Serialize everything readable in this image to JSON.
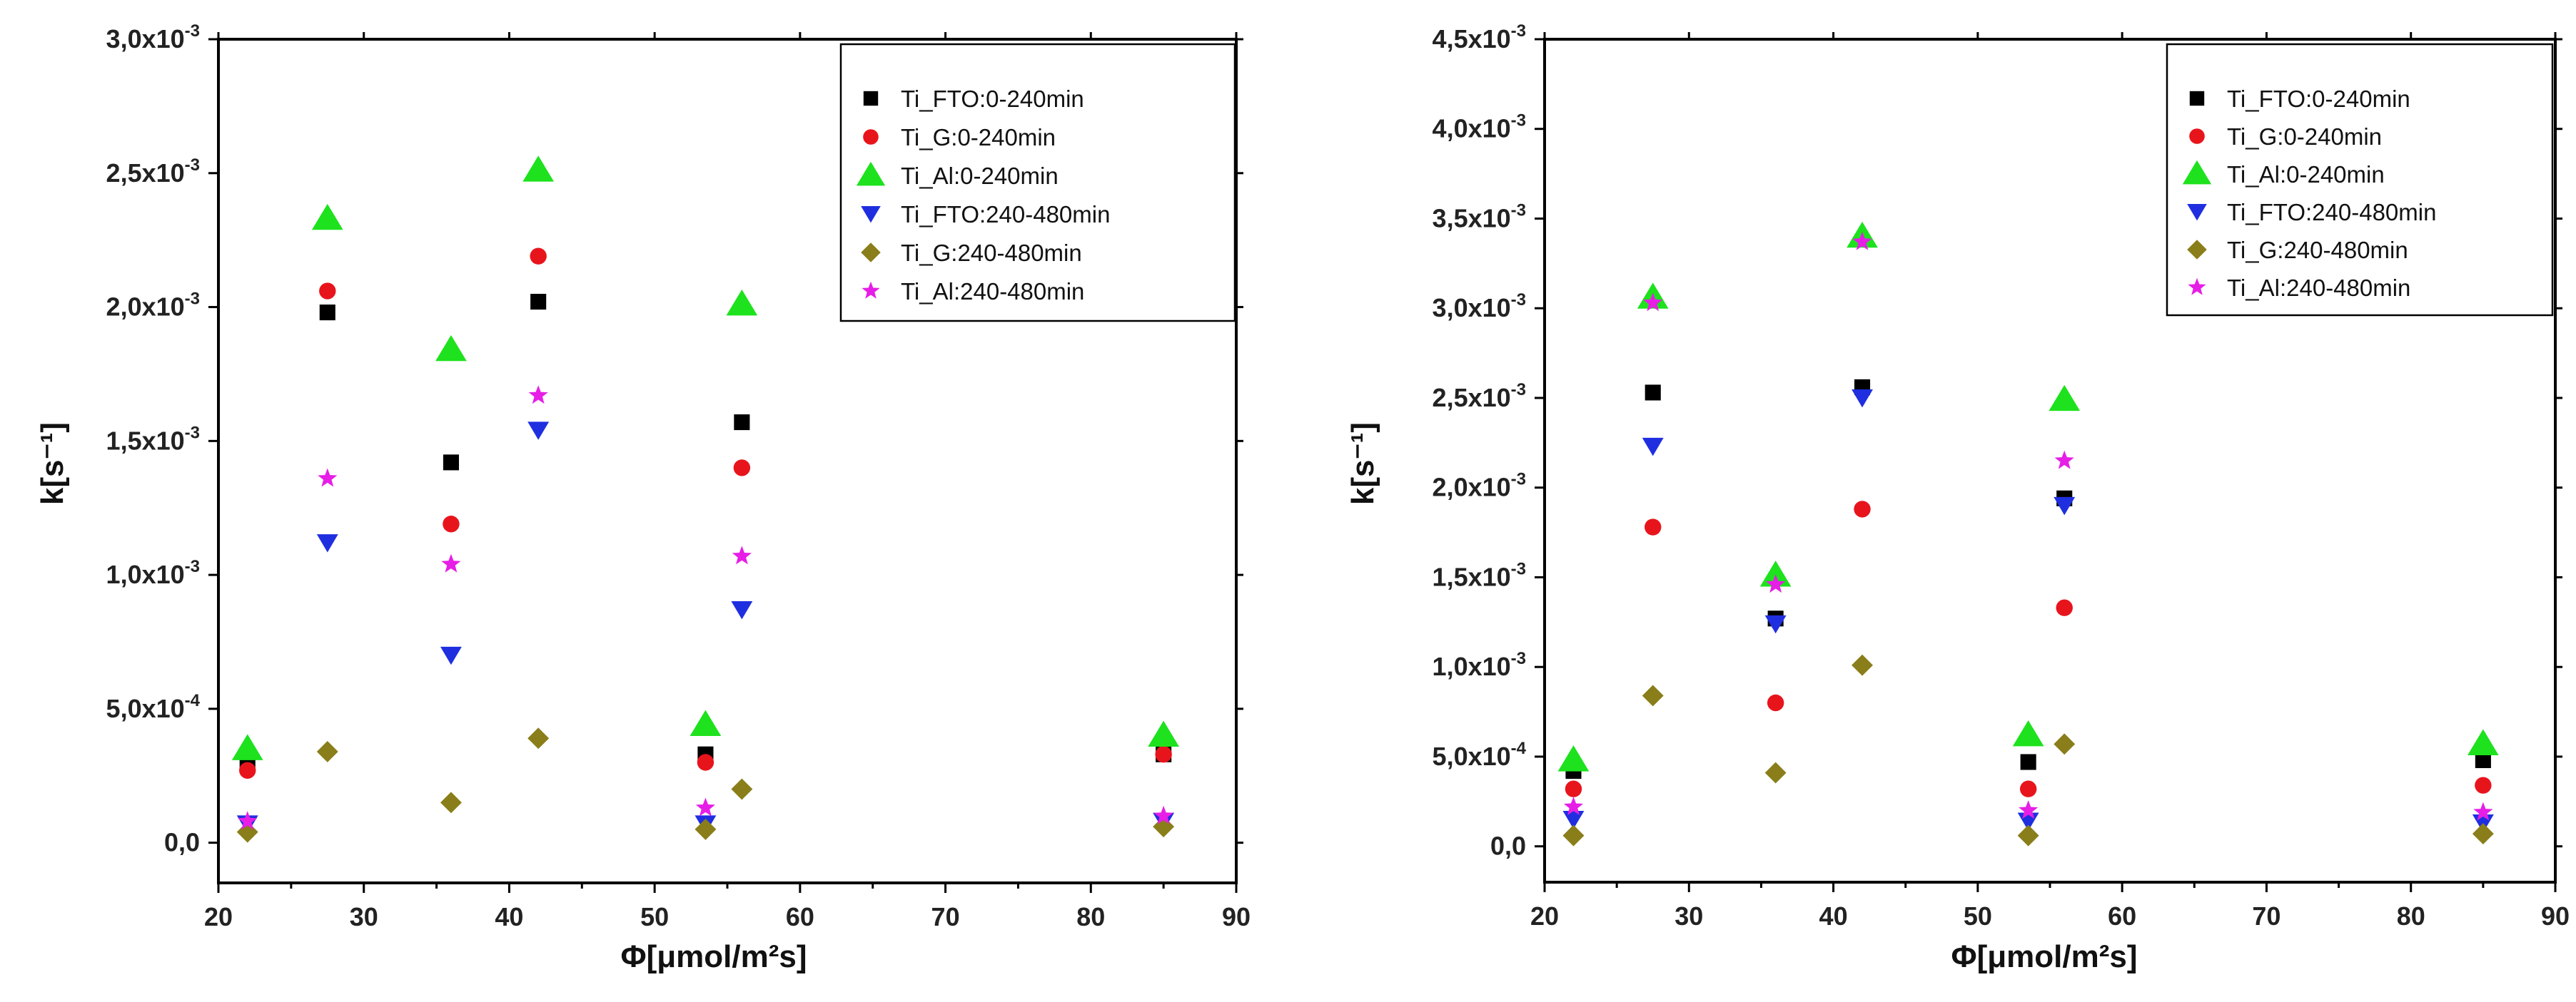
{
  "chart_data": [
    {
      "type": "scatter",
      "xlabel": "Φ[μmol/m²s]",
      "ylabel": "k[s⁻¹]",
      "xlim": [
        20,
        90
      ],
      "ylim": [
        -0.00015,
        0.003
      ],
      "x_ticks": [
        20,
        30,
        40,
        50,
        60,
        70,
        80,
        90
      ],
      "y_ticks": [
        {
          "value": 0,
          "label": "0,0",
          "exp": ""
        },
        {
          "value": 0.0005,
          "label": "5,0x10",
          "exp": "-4"
        },
        {
          "value": 0.001,
          "label": "1,0x10",
          "exp": "-3"
        },
        {
          "value": 0.0015,
          "label": "1,5x10",
          "exp": "-3"
        },
        {
          "value": 0.002,
          "label": "2,0x10",
          "exp": "-3"
        },
        {
          "value": 0.0025,
          "label": "2,5x10",
          "exp": "-3"
        },
        {
          "value": 0.003,
          "label": "3,0x10",
          "exp": "-3"
        }
      ],
      "legend_position": "top-right",
      "series": [
        {
          "name": "Ti_FTO:0-240min",
          "marker": "square",
          "color": "#000000",
          "x": [
            22,
            27.5,
            36,
            42,
            53.5,
            56,
            85
          ],
          "y": [
            0.0003,
            0.00198,
            0.00142,
            0.00202,
            0.00033,
            0.00157,
            0.00033
          ]
        },
        {
          "name": "Ti_G:0-240min",
          "marker": "circle",
          "color": "#e8141c",
          "x": [
            22,
            27.5,
            36,
            42,
            53.5,
            56,
            85
          ],
          "y": [
            0.00027,
            0.00206,
            0.00119,
            0.00219,
            0.0003,
            0.0014,
            0.00033
          ]
        },
        {
          "name": "Ti_Al:0-240min",
          "marker": "triangle-up",
          "color": "#1de21d",
          "x": [
            22,
            27.5,
            36,
            42,
            53.5,
            56,
            85
          ],
          "y": [
            0.00035,
            0.00233,
            0.00184,
            0.00251,
            0.00044,
            0.00201,
            0.0004
          ]
        },
        {
          "name": "Ti_FTO:240-480min",
          "marker": "triangle-down",
          "color": "#1f2fe0",
          "x": [
            22,
            27.5,
            36,
            42,
            53.5,
            56,
            85
          ],
          "y": [
            7e-05,
            0.00112,
            0.0007,
            0.00154,
            7e-05,
            0.00087,
            8e-05
          ]
        },
        {
          "name": "Ti_G:240-480min",
          "marker": "diamond",
          "color": "#8a7e1a",
          "x": [
            22,
            27.5,
            36,
            42,
            53.5,
            56,
            85
          ],
          "y": [
            4e-05,
            0.00034,
            0.00015,
            0.00039,
            5e-05,
            0.0002,
            6e-05
          ]
        },
        {
          "name": "Ti_Al:240-480min",
          "marker": "star",
          "color": "#e61ee6",
          "x": [
            22,
            27.5,
            36,
            42,
            53.5,
            56,
            85
          ],
          "y": [
            8e-05,
            0.00136,
            0.00104,
            0.00167,
            0.00013,
            0.00107,
            0.0001
          ]
        }
      ]
    },
    {
      "type": "scatter",
      "xlabel": "Φ[μmol/m²s]",
      "ylabel": "k[s⁻¹]",
      "xlim": [
        20,
        90
      ],
      "ylim": [
        -0.0002,
        0.0045
      ],
      "x_ticks": [
        20,
        30,
        40,
        50,
        60,
        70,
        80,
        90
      ],
      "y_ticks": [
        {
          "value": 0,
          "label": "0,0",
          "exp": ""
        },
        {
          "value": 0.0005,
          "label": "5,0x10",
          "exp": "-4"
        },
        {
          "value": 0.001,
          "label": "1,0x10",
          "exp": "-3"
        },
        {
          "value": 0.0015,
          "label": "1,5x10",
          "exp": "-3"
        },
        {
          "value": 0.002,
          "label": "2,0x10",
          "exp": "-3"
        },
        {
          "value": 0.0025,
          "label": "2,5x10",
          "exp": "-3"
        },
        {
          "value": 0.003,
          "label": "3,0x10",
          "exp": "-3"
        },
        {
          "value": 0.0035,
          "label": "3,5x10",
          "exp": "-3"
        },
        {
          "value": 0.004,
          "label": "4,0x10",
          "exp": "-3"
        },
        {
          "value": 0.0045,
          "label": "4,5x10",
          "exp": "-3"
        }
      ],
      "legend_position": "top-right",
      "series": [
        {
          "name": "Ti_FTO:0-240min",
          "marker": "square",
          "color": "#000000",
          "x": [
            22,
            27.5,
            36,
            42,
            53.5,
            56,
            85
          ],
          "y": [
            0.00042,
            0.00253,
            0.00127,
            0.00256,
            0.00047,
            0.00194,
            0.00048
          ]
        },
        {
          "name": "Ti_G:0-240min",
          "marker": "circle",
          "color": "#e8141c",
          "x": [
            22,
            27.5,
            36,
            42,
            53.5,
            56,
            85
          ],
          "y": [
            0.00032,
            0.00178,
            0.0008,
            0.00188,
            0.00032,
            0.00133,
            0.00034
          ]
        },
        {
          "name": "Ti_Al:0-240min",
          "marker": "triangle-up",
          "color": "#1de21d",
          "x": [
            22,
            27.5,
            36,
            42,
            53.5,
            56,
            85
          ],
          "y": [
            0.00048,
            0.00306,
            0.00151,
            0.0034,
            0.00062,
            0.00249,
            0.00057
          ]
        },
        {
          "name": "Ti_FTO:240-480min",
          "marker": "triangle-down",
          "color": "#1f2fe0",
          "x": [
            22,
            27.5,
            36,
            42,
            53.5,
            56,
            85
          ],
          "y": [
            0.00015,
            0.00223,
            0.00124,
            0.0025,
            0.00014,
            0.0019,
            0.00013
          ]
        },
        {
          "name": "Ti_G:240-480min",
          "marker": "diamond",
          "color": "#8a7e1a",
          "x": [
            22,
            27.5,
            36,
            42,
            53.5,
            56,
            85
          ],
          "y": [
            6e-05,
            0.00084,
            0.00041,
            0.00101,
            6e-05,
            0.00057,
            7e-05
          ]
        },
        {
          "name": "Ti_Al:240-480min",
          "marker": "star",
          "color": "#e61ee6",
          "x": [
            22,
            27.5,
            36,
            42,
            53.5,
            56,
            85
          ],
          "y": [
            0.00022,
            0.00303,
            0.00146,
            0.00337,
            0.0002,
            0.00215,
            0.00019
          ]
        }
      ]
    }
  ]
}
